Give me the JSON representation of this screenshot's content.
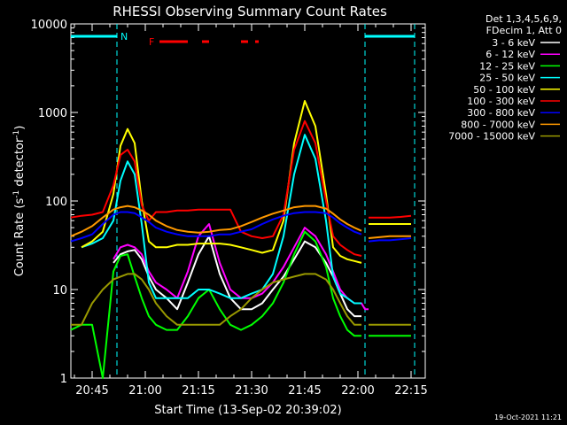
{
  "chart_data": {
    "type": "line",
    "title": "RHESSI Observing Summary Count Rates",
    "xlabel": "Start Time (13-Sep-02 20:39:02)",
    "ylabel_main": "Count Rate (s",
    "ylabel_sup1": "-1",
    "ylabel_mid": " detector",
    "ylabel_sup2": "-1",
    "ylabel_end": ")",
    "yscale": "log",
    "ylim": [
      1,
      10000
    ],
    "xlim_min": [
      0,
      100
    ],
    "y_ticks": [
      "1",
      "10",
      "100",
      "1000",
      "10000"
    ],
    "x_tick_labels": [
      "20:45",
      "21:00",
      "21:15",
      "21:30",
      "21:45",
      "22:00",
      "22:15"
    ],
    "x_tick_values": [
      6,
      21,
      36,
      51,
      66,
      81,
      96
    ],
    "legend_header_1": "Det 1,3,4,5,6,9,",
    "legend_header_2": "FDecim 1, Att 0",
    "timestamp": "19-Oct-2021 11:21",
    "flags": {
      "night_label": "N",
      "flare_label": "F",
      "night_segments": [
        [
          0,
          13
        ],
        [
          83,
          97
        ]
      ],
      "night_lines": [
        13,
        83,
        97
      ],
      "flare_segments": [
        [
          25,
          33
        ],
        [
          37,
          39
        ],
        [
          48,
          50
        ],
        [
          52,
          53
        ]
      ]
    },
    "series": [
      {
        "name": "3 - 6 keV",
        "color": "#ffffff",
        "x": [
          0,
          3,
          6,
          9,
          12,
          14,
          16,
          18,
          20,
          22,
          24,
          27,
          30,
          33,
          36,
          39,
          42,
          45,
          48,
          51,
          54,
          57,
          60,
          63,
          66,
          69,
          72,
          74,
          76,
          78,
          80,
          82,
          83,
          84,
          87,
          90,
          93,
          96
        ],
        "y": [
          null,
          null,
          null,
          null,
          20,
          25,
          27,
          28,
          22,
          14,
          10,
          8,
          6,
          12,
          25,
          40,
          15,
          8,
          6,
          6,
          7,
          10,
          14,
          22,
          35,
          30,
          20,
          14,
          9,
          6,
          5,
          5,
          null,
          null,
          null,
          null,
          null,
          null
        ]
      },
      {
        "name": "6 - 12 keV",
        "color": "#ff00ff",
        "x": [
          0,
          3,
          6,
          9,
          12,
          14,
          16,
          18,
          20,
          22,
          24,
          27,
          30,
          33,
          36,
          39,
          42,
          45,
          48,
          51,
          54,
          57,
          60,
          63,
          66,
          69,
          72,
          74,
          76,
          78,
          80,
          82,
          83,
          84,
          87,
          90,
          93,
          96
        ],
        "y": [
          null,
          null,
          null,
          null,
          22,
          30,
          32,
          30,
          25,
          16,
          12,
          10,
          8,
          16,
          40,
          55,
          20,
          10,
          8,
          8,
          9,
          12,
          18,
          30,
          50,
          40,
          25,
          16,
          10,
          8,
          7,
          7,
          6,
          6,
          null,
          null,
          null,
          null
        ]
      },
      {
        "name": "12 - 25 keV",
        "color": "#00ff00",
        "x": [
          0,
          3,
          6,
          9,
          12,
          14,
          16,
          18,
          20,
          22,
          24,
          27,
          30,
          33,
          36,
          39,
          42,
          45,
          48,
          51,
          54,
          57,
          60,
          63,
          66,
          69,
          72,
          74,
          76,
          78,
          80,
          82,
          83,
          84,
          87,
          90,
          93,
          96
        ],
        "y": [
          3.5,
          4,
          4,
          1,
          16,
          24,
          25,
          14,
          8,
          5,
          4,
          3.5,
          3.5,
          5,
          8,
          10,
          6,
          4,
          3.5,
          4,
          5,
          7,
          12,
          25,
          45,
          35,
          18,
          8,
          5,
          3.5,
          3,
          3,
          null,
          3,
          3,
          3,
          3,
          3
        ]
      },
      {
        "name": "25 - 50 keV",
        "color": "#00ffff",
        "x": [
          0,
          3,
          6,
          9,
          12,
          14,
          16,
          18,
          20,
          22,
          24,
          27,
          30,
          33,
          36,
          39,
          42,
          45,
          48,
          51,
          54,
          57,
          60,
          63,
          66,
          69,
          72,
          74,
          76,
          78,
          80,
          82,
          83,
          84,
          87,
          90,
          93,
          96
        ],
        "y": [
          null,
          30,
          33,
          38,
          60,
          170,
          280,
          200,
          55,
          12,
          8,
          8,
          8,
          8,
          10,
          10,
          9,
          8,
          8,
          9,
          10,
          15,
          40,
          200,
          560,
          300,
          60,
          14,
          9,
          8,
          7,
          7,
          null,
          null,
          null,
          null,
          null,
          null
        ]
      },
      {
        "name": "50 - 100 keV",
        "color": "#ffff00",
        "x": [
          0,
          3,
          6,
          9,
          12,
          14,
          16,
          18,
          20,
          22,
          24,
          27,
          30,
          33,
          36,
          39,
          42,
          45,
          48,
          51,
          54,
          57,
          60,
          63,
          66,
          69,
          72,
          74,
          76,
          78,
          80,
          82,
          83,
          84,
          87,
          90,
          93,
          96
        ],
        "y": [
          null,
          30,
          35,
          45,
          120,
          420,
          650,
          450,
          100,
          35,
          30,
          30,
          32,
          32,
          33,
          33,
          33,
          32,
          30,
          28,
          26,
          28,
          60,
          450,
          1350,
          700,
          120,
          30,
          24,
          22,
          21,
          20,
          null,
          55,
          55,
          55,
          55,
          55
        ]
      },
      {
        "name": "100 - 300 keV",
        "color": "#ff0000",
        "x": [
          0,
          3,
          6,
          9,
          12,
          14,
          16,
          18,
          20,
          22,
          24,
          27,
          30,
          33,
          36,
          39,
          42,
          45,
          48,
          51,
          54,
          57,
          60,
          63,
          66,
          69,
          72,
          74,
          76,
          78,
          80,
          82,
          83,
          84,
          87,
          90,
          93,
          96
        ],
        "y": [
          65,
          68,
          70,
          75,
          150,
          330,
          380,
          280,
          90,
          60,
          75,
          75,
          78,
          78,
          80,
          80,
          80,
          80,
          45,
          40,
          38,
          40,
          70,
          380,
          800,
          450,
          100,
          40,
          32,
          28,
          25,
          24,
          null,
          65,
          65,
          65,
          66,
          68
        ]
      },
      {
        "name": "300 - 800 keV",
        "color": "#0000ff",
        "x": [
          0,
          3,
          6,
          9,
          12,
          14,
          16,
          18,
          20,
          22,
          24,
          27,
          30,
          33,
          36,
          39,
          42,
          45,
          48,
          51,
          54,
          57,
          60,
          63,
          66,
          69,
          72,
          74,
          76,
          78,
          80,
          82,
          83,
          84,
          87,
          90,
          93,
          96
        ],
        "y": [
          35,
          38,
          42,
          55,
          70,
          75,
          75,
          73,
          65,
          58,
          50,
          45,
          42,
          40,
          40,
          40,
          42,
          42,
          45,
          48,
          55,
          62,
          68,
          73,
          75,
          75,
          73,
          65,
          56,
          50,
          45,
          42,
          null,
          35,
          36,
          36,
          37,
          38
        ]
      },
      {
        "name": "800 - 7000 keV",
        "color": "#ff9900",
        "x": [
          0,
          3,
          6,
          9,
          12,
          14,
          16,
          18,
          20,
          22,
          24,
          27,
          30,
          33,
          36,
          39,
          42,
          45,
          48,
          51,
          54,
          57,
          60,
          63,
          66,
          69,
          72,
          74,
          76,
          78,
          80,
          82,
          83,
          84,
          87,
          90,
          93,
          96
        ],
        "y": [
          40,
          45,
          52,
          65,
          80,
          85,
          88,
          85,
          78,
          70,
          60,
          52,
          47,
          45,
          44,
          45,
          47,
          48,
          52,
          58,
          65,
          72,
          78,
          85,
          88,
          88,
          82,
          72,
          62,
          55,
          50,
          46,
          null,
          38,
          39,
          40,
          40,
          40
        ]
      },
      {
        "name": "7000 - 15000 keV",
        "color": "#999900",
        "x": [
          0,
          3,
          6,
          9,
          12,
          14,
          16,
          18,
          20,
          22,
          24,
          27,
          30,
          33,
          36,
          39,
          42,
          45,
          48,
          51,
          54,
          57,
          60,
          63,
          66,
          69,
          72,
          74,
          76,
          78,
          80,
          82,
          83,
          84,
          87,
          90,
          93,
          96
        ],
        "y": [
          4,
          4,
          7,
          10,
          13,
          14,
          15,
          15,
          13,
          10,
          7,
          5,
          4,
          4,
          4,
          4,
          4,
          5,
          6,
          8,
          10,
          12,
          13,
          14,
          15,
          15,
          13,
          10,
          7,
          5,
          4,
          4,
          null,
          4,
          4,
          4,
          4,
          4
        ]
      }
    ]
  }
}
